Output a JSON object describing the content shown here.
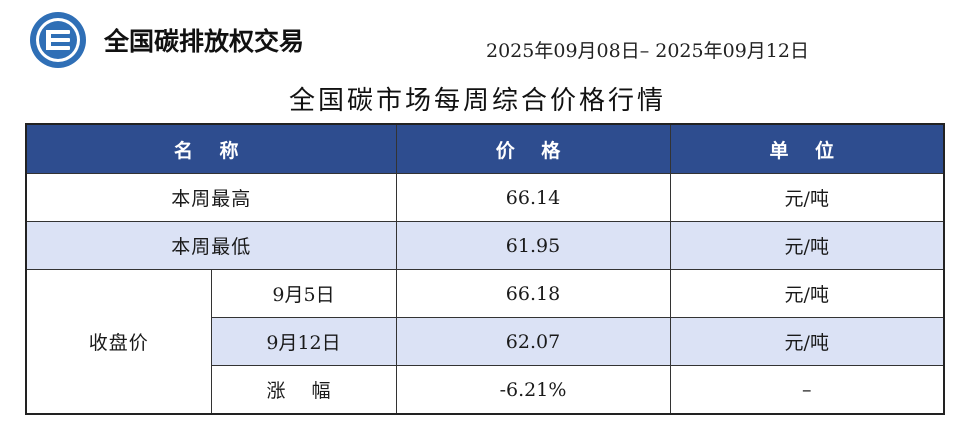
{
  "header": {
    "org_name": "全国碳排放权交易",
    "date_range": "2025年09月08日– 2025年09月12日",
    "title": "全国碳市场每周综合价格行情"
  },
  "colors": {
    "header_bg": "#2e4d8f",
    "shade": "#dbe2f5",
    "logo": "#2f6fb6"
  },
  "table": {
    "headers": {
      "name": "名 称",
      "price": "价 格",
      "unit": "单 位"
    },
    "rows": {
      "week_high": {
        "name": "本周最高",
        "price": "66.14",
        "unit": "元/吨"
      },
      "week_low": {
        "name": "本周最低",
        "price": "61.95",
        "unit": "元/吨"
      },
      "closing": {
        "group_label": "收盘价",
        "sep5": {
          "date": "9月5日",
          "price": "66.18",
          "unit": "元/吨"
        },
        "sep12": {
          "date": "9月12日",
          "price": "62.07",
          "unit": "元/吨"
        },
        "change": {
          "label": "涨 幅",
          "price": "-6.21%",
          "unit": "–"
        }
      }
    }
  }
}
